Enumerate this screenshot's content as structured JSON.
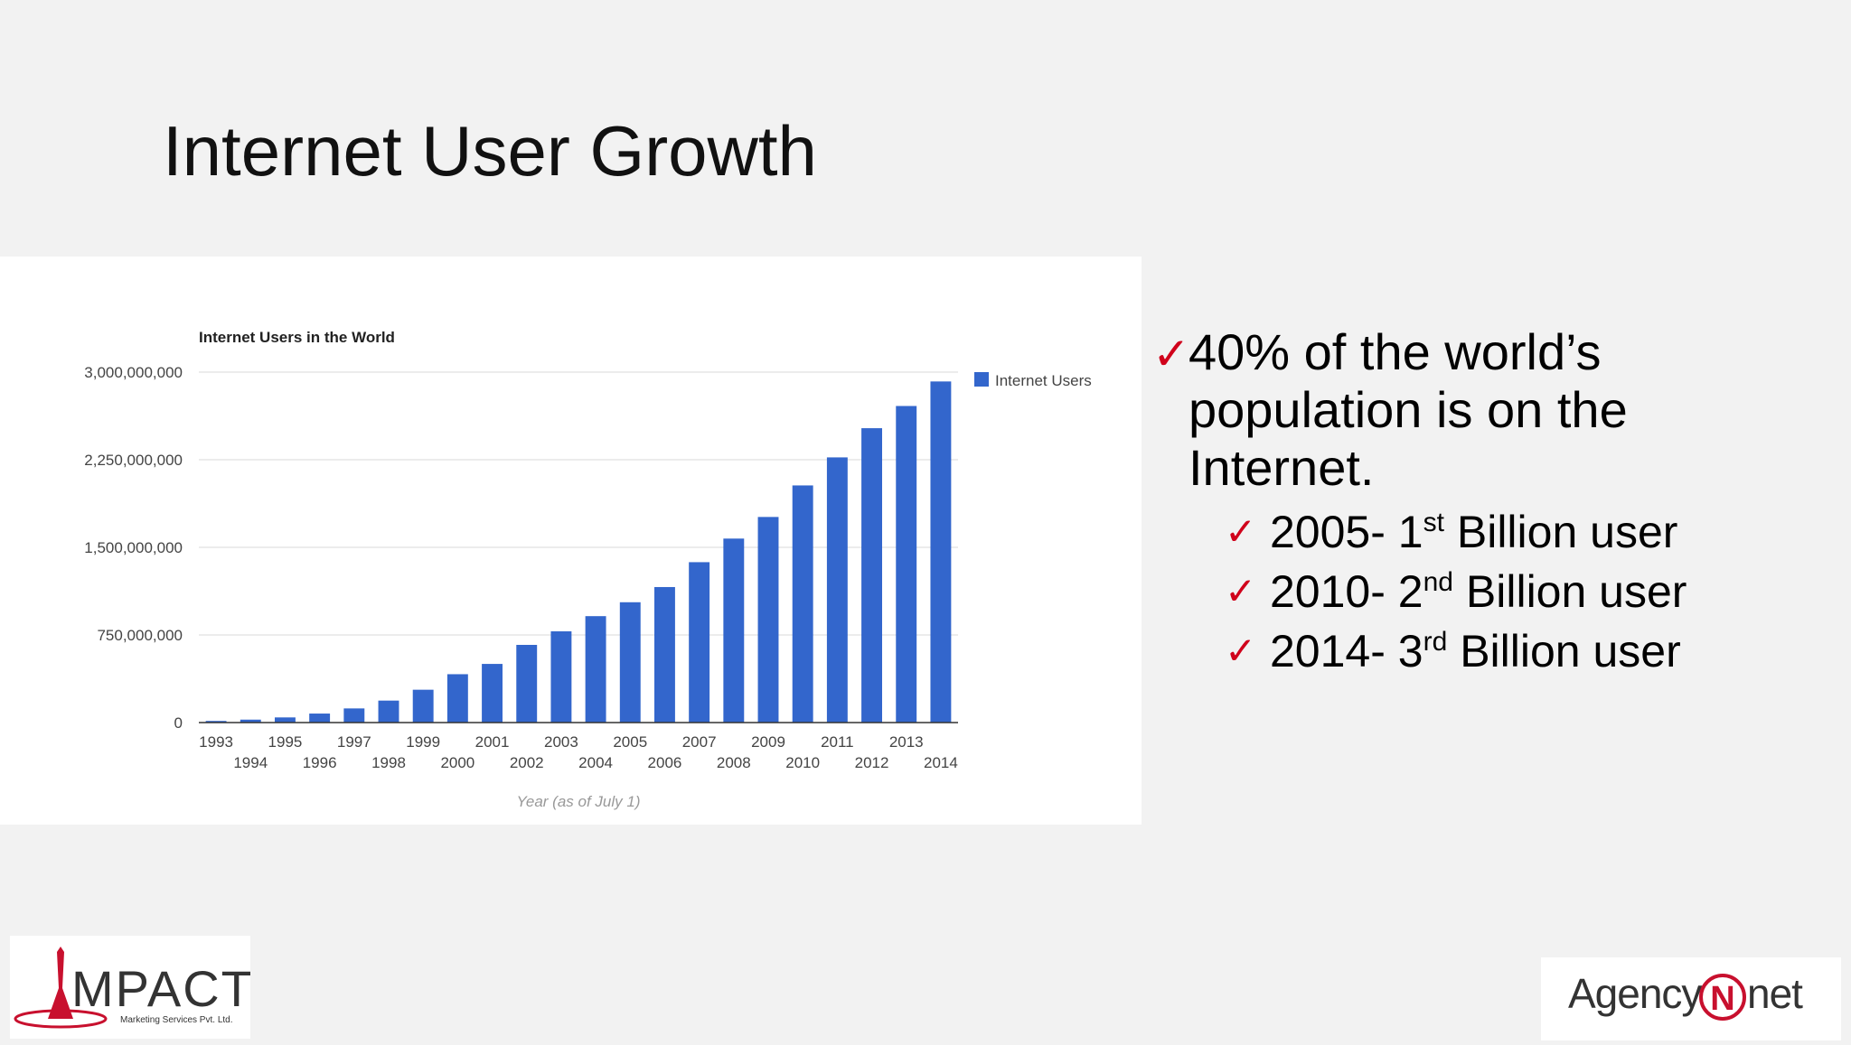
{
  "slide": {
    "title": "Internet User Growth"
  },
  "bullets": {
    "main": "40% of the world’s population is on the Internet.",
    "sub": [
      {
        "year": "2005-",
        "num": "1",
        "ordinal": "st",
        "rest": "Billion user"
      },
      {
        "year": "2010-",
        "num": "2",
        "ordinal": "nd",
        "rest": "Billion user"
      },
      {
        "year": "2014-",
        "num": "3",
        "ordinal": "rd",
        "rest": "Billion user"
      }
    ],
    "check_icon": "✓",
    "check_color": "#d0021b"
  },
  "chart_data": {
    "type": "bar",
    "title": "Internet Users in the World",
    "xlabel": "Year (as of July 1)",
    "ylabel": "",
    "categories": [
      "1993",
      "1994",
      "1995",
      "1996",
      "1997",
      "1998",
      "1999",
      "2000",
      "2001",
      "2002",
      "2003",
      "2004",
      "2005",
      "2006",
      "2007",
      "2008",
      "2009",
      "2010",
      "2011",
      "2012",
      "2013",
      "2014"
    ],
    "series": [
      {
        "name": "Internet Users",
        "color": "#3366cc",
        "values": [
          14000000,
          25000000,
          44000000,
          77000000,
          121000000,
          188000000,
          281000000,
          414000000,
          502000000,
          665000000,
          781000000,
          911000000,
          1030000000,
          1160000000,
          1373000000,
          1575000000,
          1760000000,
          2030000000,
          2270000000,
          2520000000,
          2710000000,
          2920000000
        ]
      }
    ],
    "ylim": [
      0,
      3000000000
    ],
    "yticks": [
      0,
      750000000,
      1500000000,
      2250000000,
      3000000000
    ],
    "ytick_labels": [
      "0",
      "750,000,000",
      "1,500,000,000",
      "2,250,000,000",
      "3,000,000,000"
    ],
    "grid": true,
    "legend_position": "top-right"
  },
  "logos": {
    "impact_main": "MPACT",
    "impact_sub": "Marketing Services Pvt. Ltd.",
    "agency_left": "Agency",
    "agency_mid": "N",
    "agency_right": "net"
  }
}
